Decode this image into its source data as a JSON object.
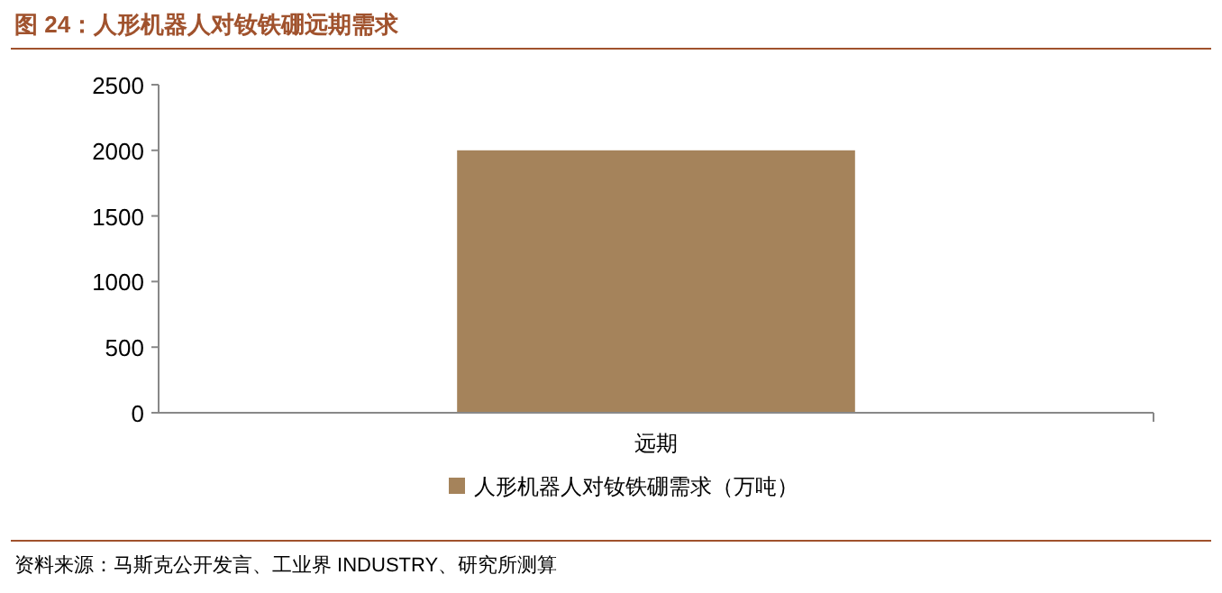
{
  "chart_data": {
    "type": "bar",
    "title": "图 24：人形机器人对钕铁硼远期需求",
    "categories": [
      "远期"
    ],
    "series": [
      {
        "name": "人形机器人对钕铁硼需求（万吨）",
        "color": "#a5835b",
        "values": [
          2000
        ]
      }
    ],
    "ylim": [
      0,
      2500
    ],
    "yticks": [
      0,
      500,
      1000,
      1500,
      2000,
      2500
    ],
    "grid": false,
    "legend": "bottom",
    "annotations": [
      "资料来源：马斯克公开发言、工业界 INDUSTRY、研究所测算"
    ]
  }
}
